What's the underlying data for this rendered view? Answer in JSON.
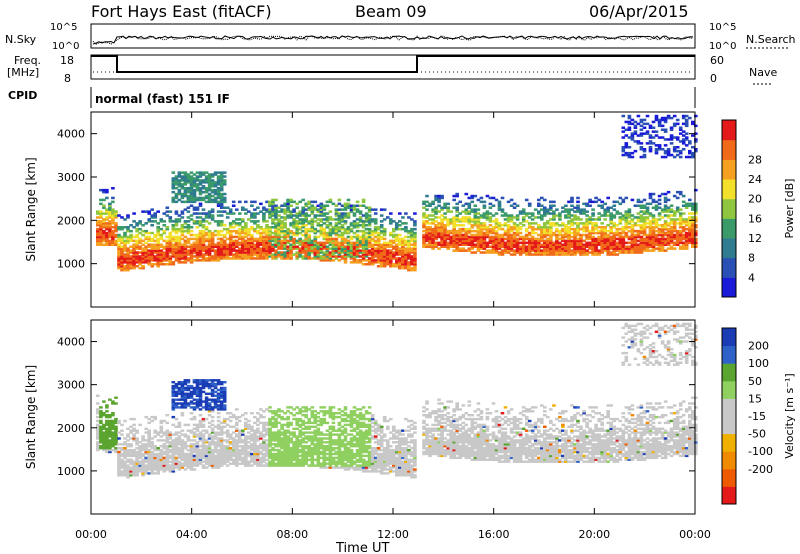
{
  "header": {
    "station": "Fort Hays East (fitACF)",
    "beam": "Beam 09",
    "date": "06/Apr/2015"
  },
  "strip_labels": {
    "nsky": "N.Sky",
    "nsky_top": "10^5",
    "nsky_bot": "10^0",
    "nsearch": "N.Search",
    "nsearch_top": "10^5",
    "nsearch_bot": "10^0",
    "freq_l1": "Freq.",
    "freq_l2": "[MHz]",
    "freq_top": "18",
    "freq_bot": "8",
    "nave": "Nave",
    "nave_top": "60",
    "nave_bot": "0",
    "cpid": "CPID",
    "cpid_value": "normal (fast) 151 IF"
  },
  "colors": {
    "power": [
      "#1a1ad9",
      "#2a4fb5",
      "#2f7b8f",
      "#3a9a6a",
      "#8ec63f",
      "#f2e02a",
      "#f5a020",
      "#f06a1a",
      "#e41a1a"
    ],
    "velocity": [
      "#1a3cb4",
      "#2f62c8",
      "#5aa52f",
      "#8fd060",
      "#c8c8c8",
      "#c8c8c8",
      "#f0b000",
      "#f08a00",
      "#ee5a00",
      "#e41a1a"
    ]
  },
  "chart_data": [
    {
      "type": "heatmap",
      "name": "Power",
      "ylabel": "Slant Range [km]",
      "xlabel": "Time UT",
      "x_ticks": [
        "00:00",
        "04:00",
        "08:00",
        "12:00",
        "16:00",
        "20:00",
        "00:00"
      ],
      "x_hours": [
        0,
        4,
        8,
        12,
        16,
        20,
        24
      ],
      "y_ticks": [
        1000,
        2000,
        3000,
        4000
      ],
      "ylim": [
        0,
        4500
      ],
      "xlim": [
        0,
        24
      ],
      "colorbar": {
        "label": "Power [dB]",
        "ticks": [
          "4",
          "8",
          "12",
          "16",
          "20",
          "24",
          "28"
        ]
      }
    },
    {
      "type": "heatmap",
      "name": "Velocity",
      "ylabel": "Slant Range [km]",
      "xlabel": "Time UT",
      "x_ticks": [
        "00:00",
        "04:00",
        "08:00",
        "12:00",
        "16:00",
        "20:00",
        "00:00"
      ],
      "x_hours": [
        0,
        4,
        8,
        12,
        16,
        20,
        24
      ],
      "y_ticks": [
        1000,
        2000,
        3000,
        4000
      ],
      "ylim": [
        0,
        4500
      ],
      "xlim": [
        0,
        24
      ],
      "colorbar": {
        "label": "Velocity [m s⁻¹]",
        "ticks": [
          "200",
          "100",
          "50",
          "15",
          "-15",
          "-50",
          "-100",
          "-200"
        ]
      }
    }
  ]
}
